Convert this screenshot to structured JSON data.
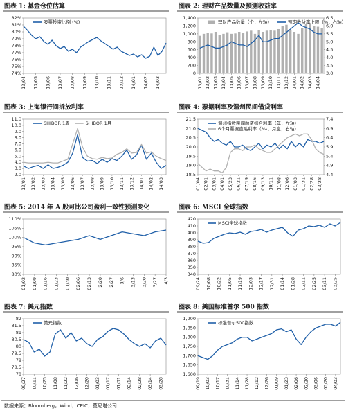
{
  "source": "数据来源：Bloomberg，Wind，CEIC，莫尼塔公司",
  "chart_data": [
    {
      "type": "line",
      "title": "图表 1:  基金仓位估算",
      "categories": [
        "13/04",
        null,
        null,
        "13/05",
        null,
        null,
        "13/06",
        null,
        null,
        "13/07",
        null,
        null,
        "13/08",
        null,
        null,
        "13/09",
        null,
        null,
        "13/10",
        null,
        null,
        "13/11",
        null,
        null,
        "13/12",
        null,
        null,
        "14/01",
        null,
        null,
        "14/02",
        null,
        null,
        "14/03",
        null,
        null
      ],
      "series": [
        {
          "name": "股票投资比例 (%)",
          "color": "#1f5fa8",
          "values": [
            80.8,
            80.2,
            79.5,
            79.0,
            79.3,
            78.6,
            78.2,
            78.8,
            78.0,
            77.6,
            77.9,
            77.2,
            77.5,
            77.0,
            77.8,
            78.2,
            78.6,
            78.9,
            79.2,
            78.7,
            78.3,
            77.9,
            77.5,
            77.8,
            77.2,
            76.9,
            76.6,
            76.8,
            76.4,
            76.7,
            76.2,
            76.5,
            77.8,
            76.6,
            77.2,
            78.4
          ]
        }
      ],
      "ylim": [
        74,
        82
      ],
      "yticks": [
        {
          "value": 74,
          "label": "74%"
        },
        {
          "value": 75,
          "label": "75%"
        },
        {
          "value": 76,
          "label": "76%"
        },
        {
          "value": 77,
          "label": "77%"
        },
        {
          "value": 78,
          "label": "78%"
        },
        {
          "value": 79,
          "label": "79%"
        },
        {
          "value": 80,
          "label": "80%"
        },
        {
          "value": 81,
          "label": "81%"
        },
        {
          "value": 82,
          "label": "82%"
        }
      ]
    },
    {
      "type": "line",
      "title": "图表 2:  理财产品数量及预测收益率",
      "categories": [
        "13/01",
        null,
        "13/02",
        null,
        "13/03",
        null,
        "13/04",
        null,
        "13/05",
        null,
        "13/06",
        null,
        "13/07",
        null,
        "13/08",
        null,
        "13/09",
        null,
        "13/10",
        null,
        "13/11",
        null,
        "13/12",
        null,
        "14/01",
        null,
        "14/02",
        null,
        "14/03",
        null,
        "14/04",
        null
      ],
      "series": [
        {
          "name": "理财产品数量（个，左轴）",
          "type": "bar",
          "color": "#b0b0b0",
          "values": [
            950,
            1000,
            1020,
            1010,
            1050,
            980,
            1000,
            1040,
            1000,
            1010,
            1050,
            1020,
            1060,
            1080,
            1000,
            1100,
            1050,
            1080,
            1100,
            1080,
            1120,
            1200,
            1230,
            1100,
            1050,
            1000,
            1150,
            1250,
            1270,
            1200,
            1180,
            1150
          ]
        },
        {
          "name": "预期收益率上限（%，右轴）",
          "axis": "y2",
          "color": "#1f5fa8",
          "values": [
            4.6,
            4.7,
            4.8,
            4.7,
            4.6,
            4.6,
            4.7,
            4.8,
            5.0,
            4.9,
            4.8,
            4.8,
            4.7,
            4.9,
            5.1,
            5.4,
            5.0,
            5.0,
            5.1,
            5.2,
            5.2,
            5.4,
            5.6,
            5.8,
            6.0,
            6.2,
            6.0,
            5.9,
            5.8,
            5.6,
            5.5,
            5.5
          ]
        }
      ],
      "ylim": [
        0,
        1400
      ],
      "yticks": [
        0,
        200,
        400,
        600,
        800,
        {
          "value": 1000,
          "label": "1,000"
        },
        {
          "value": 1200,
          "label": "1,200"
        },
        {
          "value": 1400,
          "label": "1,400"
        }
      ],
      "y2lim": [
        3,
        6.5
      ],
      "y2ticks": [
        {
          "value": 3,
          "label": "3.0"
        },
        3.5,
        {
          "value": 4,
          "label": "4.0"
        },
        4.5,
        {
          "value": 5,
          "label": "5.0"
        },
        5.5,
        {
          "value": 6,
          "label": "6.0"
        },
        6.5
      ]
    },
    {
      "type": "line",
      "title": "图表 3:  上海银行间拆放利率",
      "categories": [
        "13/01",
        null,
        "13/02",
        null,
        "13/03",
        null,
        "13/04",
        null,
        "13/05",
        null,
        "13/06",
        null,
        "13/07",
        null,
        "13/08",
        null,
        "13/09",
        null,
        "13/10",
        null,
        "13/11",
        null,
        "13/12",
        null,
        "14/01",
        null,
        "14/02",
        null,
        "14/03",
        null
      ],
      "series": [
        {
          "name": "SHIBOR 1周",
          "color": "#1f5fa8",
          "values": [
            3.4,
            3.0,
            3.3,
            3.5,
            3.0,
            3.6,
            3.0,
            3.2,
            3.5,
            4.0,
            5.5,
            8.5,
            4.8,
            4.2,
            4.3,
            3.8,
            4.5,
            4.0,
            4.6,
            4.3,
            5.0,
            6.0,
            4.5,
            5.2,
            6.8,
            4.5,
            5.5,
            4.0,
            3.0,
            3.5
          ]
        },
        {
          "name": "SHIBOR 1月",
          "color": "#b0b0b0",
          "values": [
            4.0,
            3.9,
            3.9,
            3.9,
            3.9,
            4.0,
            3.9,
            3.9,
            4.2,
            4.5,
            7.0,
            9.5,
            6.5,
            5.0,
            4.6,
            4.5,
            4.8,
            4.6,
            4.7,
            5.3,
            5.6,
            6.2,
            5.5,
            5.6,
            6.9,
            5.5,
            5.7,
            5.0,
            4.6,
            4.3
          ]
        }
      ],
      "ylim": [
        2,
        11
      ],
      "yticks": [
        {
          "value": 2,
          "label": "2.0"
        },
        {
          "value": 3,
          "label": "3.0"
        },
        {
          "value": 4,
          "label": "4.0"
        },
        {
          "value": 5,
          "label": "5.0"
        },
        {
          "value": 6,
          "label": "6.0"
        },
        {
          "value": 7,
          "label": "7.0"
        },
        {
          "value": 8,
          "label": "8.0"
        },
        {
          "value": 9,
          "label": "9.0"
        },
        {
          "value": 10,
          "label": "10.0"
        },
        {
          "value": 11,
          "label": "11.0"
        }
      ]
    },
    {
      "type": "line",
      "title": "图表 4:  票据利率及温州民间借贷利率",
      "categories": [
        "01/04",
        null,
        "02/01",
        null,
        "03/01",
        null,
        "04/01",
        null,
        "05/23",
        null,
        "06/21",
        null,
        "07/19",
        null,
        "08/16",
        null,
        "09/13",
        null,
        "10/11",
        null,
        "11/08",
        null,
        "12/06",
        null,
        "01/03",
        null,
        "01/31",
        null,
        "02/28",
        null,
        "03/28",
        null
      ],
      "series": [
        {
          "name": "温州指数民间融资综合利率（年，左轴）",
          "color": "#1f5fa8",
          "values": [
            21.0,
            20.9,
            20.8,
            20.5,
            20.3,
            20.4,
            20.2,
            20.1,
            20.3,
            20.0,
            20.0,
            20.1,
            19.9,
            19.8,
            20.0,
            20.2,
            19.9,
            20.1,
            20.0,
            20.2,
            19.9,
            20.1,
            19.9,
            20.3,
            20.0,
            20.2,
            20.0,
            20.4,
            20.3,
            20.3,
            20.2,
            20.3
          ]
        },
        {
          "name": "6个月票据直贴利率（‰，月息，右轴）",
          "axis": "y2",
          "color": "#b0b0b0",
          "values": [
            5.0,
            4.8,
            4.6,
            4.7,
            4.6,
            4.6,
            4.5,
            4.8,
            5.6,
            5.8,
            5.8,
            5.7,
            5.9,
            5.9,
            6.0,
            5.8,
            5.7,
            5.6,
            5.6,
            5.8,
            6.0,
            6.2,
            6.4,
            6.5,
            6.6,
            6.5,
            6.6,
            6.6,
            6.3,
            5.8,
            5.6,
            5.5
          ]
        }
      ],
      "ylim": [
        18.5,
        21.5
      ],
      "yticks": [
        18.5,
        {
          "value": 19,
          "label": "19.0"
        },
        19.5,
        {
          "value": 20,
          "label": "20.0"
        },
        20.5,
        {
          "value": 21,
          "label": "21.0"
        },
        21.5
      ],
      "y2lim": [
        4.4,
        7.4
      ],
      "y2ticks": [
        4.4,
        4.9,
        5.4,
        5.9,
        6.4,
        6.9,
        7.4
      ]
    },
    {
      "type": "line",
      "title": "图表 5:  2014 年 A 股可比公司盈利一致性预测变化",
      "categories": [
        "01/02",
        "01/09",
        "01/16",
        "01/23",
        "01/30",
        "02/06",
        "02/13",
        "2/20",
        "2/27",
        "3/6",
        "3/13",
        "3/20",
        "3/27",
        "4/3"
      ],
      "series": [
        {
          "color": "#1f5fa8",
          "values": [
            100,
            97,
            96,
            97,
            98,
            99,
            101,
            99,
            101,
            103,
            102,
            101,
            103,
            104
          ]
        }
      ],
      "ylim": [
        80,
        110
      ],
      "yticks": [
        {
          "value": 80,
          "label": "80%"
        },
        {
          "value": 85,
          "label": "85%"
        },
        {
          "value": 90,
          "label": "90%"
        },
        {
          "value": 95,
          "label": "95%"
        },
        {
          "value": 100,
          "label": "100%"
        },
        {
          "value": 105,
          "label": "105%"
        },
        {
          "value": 110,
          "label": "110%"
        }
      ]
    },
    {
      "type": "line",
      "title": "图表 6:  MSCI 全球指数",
      "categories": [
        "09/24",
        null,
        "10/08",
        null,
        "10/22",
        null,
        "11/05",
        null,
        "11/19",
        null,
        "12/03",
        null,
        "12/17",
        null,
        "12/31",
        null,
        "01/14",
        null,
        "01/28",
        null,
        "02/11",
        null,
        "02/25",
        null,
        "03/11",
        null,
        "03/25",
        null
      ],
      "series": [
        {
          "name": "MSCI全球指数",
          "color": "#1f5fa8",
          "values": [
            388,
            385,
            386,
            392,
            395,
            398,
            400,
            399,
            401,
            398,
            402,
            403,
            405,
            401,
            404,
            406,
            408,
            400,
            395,
            404,
            406,
            410,
            409,
            411,
            408,
            413,
            410,
            415
          ]
        }
      ],
      "ylim": [
        340,
        420
      ],
      "yticks": [
        340,
        350,
        360,
        370,
        380,
        390,
        400,
        410,
        420
      ]
    },
    {
      "type": "line",
      "title": "图表 7:  美元指数",
      "categories": [
        "09/27",
        null,
        "10/11",
        null,
        "10/25",
        null,
        "11/08",
        null,
        "11/22",
        null,
        "12/06",
        null,
        "12/20",
        null,
        "01/03",
        null,
        "01/17",
        null,
        "01/31",
        null,
        "02/14",
        null,
        "02/28",
        null,
        "03/14",
        null,
        "03/28",
        null
      ],
      "series": [
        {
          "name": "美元指数",
          "color": "#1f5fa8",
          "values": [
            80.5,
            80.3,
            79.6,
            79.8,
            79.3,
            79.6,
            80.9,
            81.2,
            80.6,
            81.0,
            80.4,
            80.6,
            80.2,
            80.0,
            80.5,
            80.7,
            81.1,
            81.3,
            81.2,
            80.9,
            80.5,
            80.2,
            80.0,
            80.2,
            79.9,
            80.4,
            80.6,
            80.1
          ]
        }
      ],
      "ylim": [
        78,
        82
      ],
      "yticks": [
        78,
        78.5,
        79,
        79.5,
        80,
        80.5,
        81,
        81.5,
        82
      ]
    },
    {
      "type": "line",
      "title": "图表 8:  美国标准普尔 500 指数",
      "categories": [
        "09/19",
        null,
        "10/03",
        null,
        "10/17",
        null,
        "10/31",
        null,
        "11/14",
        null,
        "11/28",
        null,
        "12/12",
        null,
        "12/26",
        null,
        "01/09",
        null,
        "01/23",
        null,
        "02/06",
        null,
        "02/20",
        null,
        "03/06",
        null,
        "03/20",
        null,
        "04/03",
        null
      ],
      "series": [
        {
          "name": "标准普尔500指数",
          "color": "#1f5fa8",
          "values": [
            1700,
            1690,
            1680,
            1700,
            1730,
            1750,
            1760,
            1770,
            1790,
            1800,
            1800,
            1780,
            1790,
            1800,
            1810,
            1820,
            1840,
            1845,
            1830,
            1840,
            1790,
            1760,
            1800,
            1830,
            1850,
            1860,
            1870,
            1870,
            1860,
            1880
          ]
        }
      ],
      "ylim": [
        1600,
        1900
      ],
      "yticks": [
        {
          "value": 1600,
          "label": "1,600"
        },
        {
          "value": 1650,
          "label": "1,650"
        },
        {
          "value": 1700,
          "label": "1,700"
        },
        {
          "value": 1750,
          "label": "1,750"
        },
        {
          "value": 1800,
          "label": "1,800"
        },
        {
          "value": 1850,
          "label": "1,850"
        },
        {
          "value": 1900,
          "label": "1,900"
        }
      ]
    }
  ]
}
